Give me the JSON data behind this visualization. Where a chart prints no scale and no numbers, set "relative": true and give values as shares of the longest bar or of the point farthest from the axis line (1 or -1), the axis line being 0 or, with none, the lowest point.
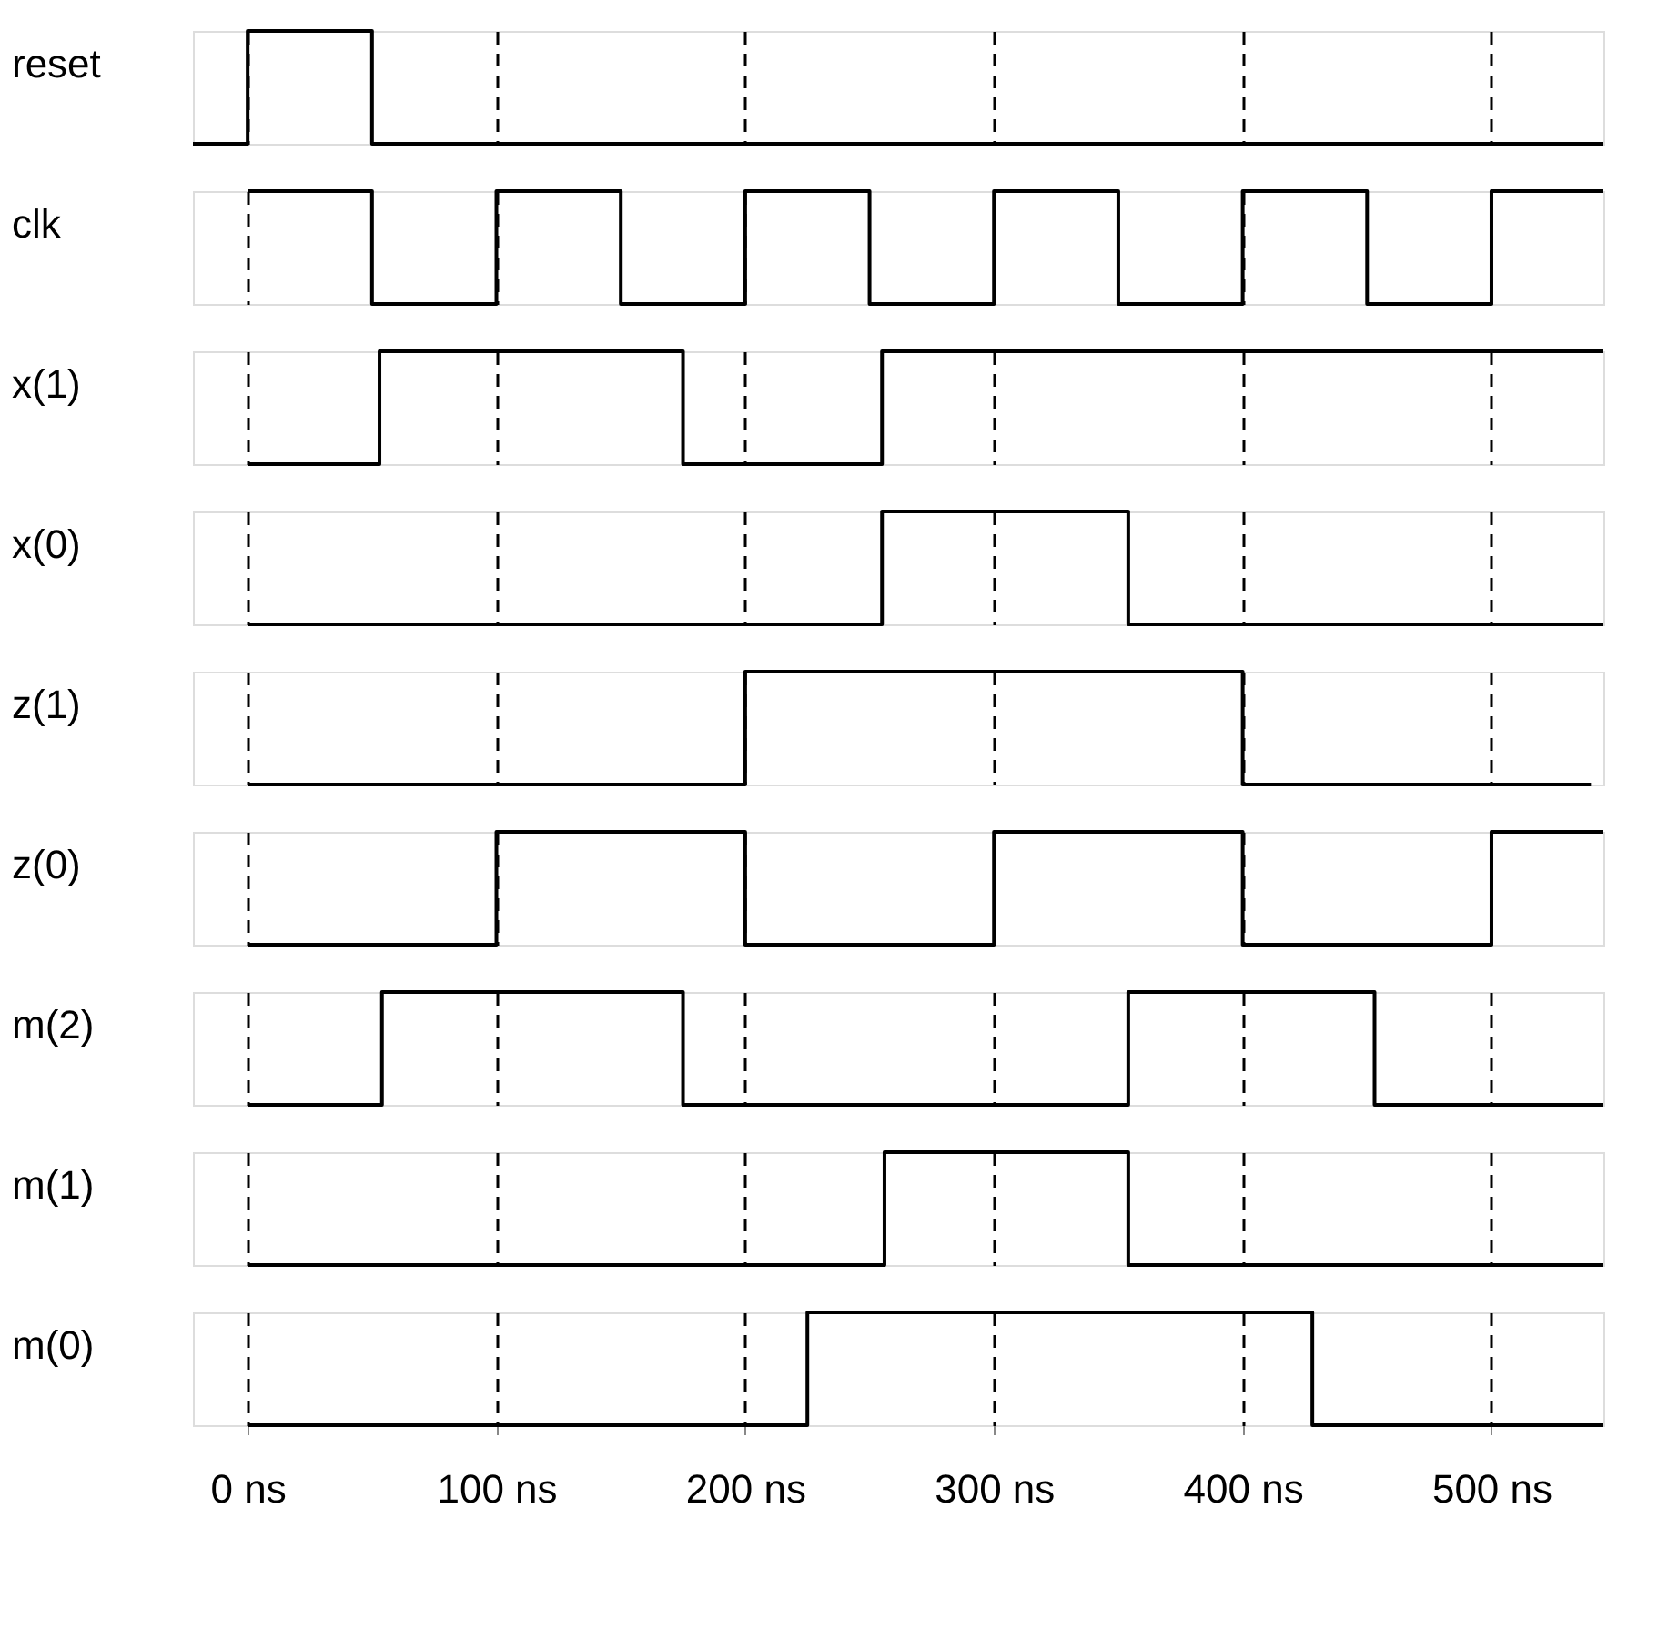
{
  "chart_data": [
    {
      "type": "step",
      "ylabel": "reset",
      "relative": true,
      "xlim": [
        -22,
        545
      ],
      "xticks": [
        {
          "value": 0,
          "label": null
        },
        {
          "value": 100,
          "label": null
        },
        {
          "value": 200,
          "label": null
        },
        {
          "value": 300,
          "label": null
        },
        {
          "value": 400,
          "label": null
        },
        {
          "value": 500,
          "label": null
        }
      ],
      "grid": "x",
      "line_style": "solid",
      "tick_labels": false,
      "series": [
        {
          "color": "#000000",
          "x": [
            -22,
            0,
            50,
            545
          ],
          "values": [
            0,
            1,
            0,
            0
          ]
        }
      ]
    },
    {
      "type": "step",
      "ylabel": "clk",
      "relative": true,
      "xlim": [
        -22,
        545
      ],
      "xticks": [
        {
          "value": 0,
          "label": null
        },
        {
          "value": 100,
          "label": null
        },
        {
          "value": 200,
          "label": null
        },
        {
          "value": 300,
          "label": null
        },
        {
          "value": 400,
          "label": null
        },
        {
          "value": 500,
          "label": null
        }
      ],
      "grid": "x",
      "line_style": "solid",
      "tick_labels": false,
      "series": [
        {
          "color": "#000000",
          "x": [
            0,
            50,
            100,
            150,
            200,
            250,
            300,
            350,
            400,
            450,
            500,
            545
          ],
          "values": [
            1,
            0,
            1,
            0,
            1,
            0,
            1,
            0,
            1,
            0,
            1,
            1
          ]
        }
      ]
    },
    {
      "type": "step",
      "ylabel": "x(1)",
      "relative": true,
      "xlim": [
        -22,
        545
      ],
      "xticks": [
        {
          "value": 0,
          "label": null
        },
        {
          "value": 100,
          "label": null
        },
        {
          "value": 200,
          "label": null
        },
        {
          "value": 300,
          "label": null
        },
        {
          "value": 400,
          "label": null
        },
        {
          "value": 500,
          "label": null
        }
      ],
      "grid": "x",
      "line_style": "solid",
      "tick_labels": false,
      "series": [
        {
          "color": "#000000",
          "x": [
            0,
            53,
            175,
            255,
            545
          ],
          "values": [
            0,
            1,
            0,
            1,
            1
          ]
        }
      ]
    },
    {
      "type": "step",
      "ylabel": "x(0)",
      "relative": true,
      "xlim": [
        -22,
        545
      ],
      "xticks": [
        {
          "value": 0,
          "label": null
        },
        {
          "value": 100,
          "label": null
        },
        {
          "value": 200,
          "label": null
        },
        {
          "value": 300,
          "label": null
        },
        {
          "value": 400,
          "label": null
        },
        {
          "value": 500,
          "label": null
        }
      ],
      "grid": "x",
      "line_style": "solid",
      "tick_labels": false,
      "series": [
        {
          "color": "#000000",
          "x": [
            0,
            255,
            354,
            545
          ],
          "values": [
            0,
            1,
            0,
            0
          ]
        }
      ]
    },
    {
      "type": "step",
      "ylabel": "z(1)",
      "relative": true,
      "xlim": [
        -22,
        545
      ],
      "xticks": [
        {
          "value": 0,
          "label": null
        },
        {
          "value": 100,
          "label": null
        },
        {
          "value": 200,
          "label": null
        },
        {
          "value": 300,
          "label": null
        },
        {
          "value": 400,
          "label": null
        },
        {
          "value": 500,
          "label": null
        }
      ],
      "grid": "x",
      "line_style": "solid",
      "tick_labels": false,
      "series": [
        {
          "color": "#000000",
          "x": [
            0,
            200,
            400,
            540
          ],
          "values": [
            0,
            1,
            0,
            0
          ]
        }
      ]
    },
    {
      "type": "step",
      "ylabel": "z(0)",
      "relative": true,
      "xlim": [
        -22,
        545
      ],
      "xticks": [
        {
          "value": 0,
          "label": null
        },
        {
          "value": 100,
          "label": null
        },
        {
          "value": 200,
          "label": null
        },
        {
          "value": 300,
          "label": null
        },
        {
          "value": 400,
          "label": null
        },
        {
          "value": 500,
          "label": null
        }
      ],
      "grid": "x",
      "line_style": "solid",
      "tick_labels": false,
      "series": [
        {
          "color": "#000000",
          "x": [
            0,
            100,
            200,
            300,
            400,
            500,
            545
          ],
          "values": [
            0,
            1,
            0,
            1,
            0,
            1,
            1
          ]
        }
      ]
    },
    {
      "type": "step",
      "ylabel": "m(2)",
      "relative": true,
      "xlim": [
        -22,
        545
      ],
      "xticks": [
        {
          "value": 0,
          "label": null
        },
        {
          "value": 100,
          "label": null
        },
        {
          "value": 200,
          "label": null
        },
        {
          "value": 300,
          "label": null
        },
        {
          "value": 400,
          "label": null
        },
        {
          "value": 500,
          "label": null
        }
      ],
      "grid": "x",
      "line_style": "solid",
      "tick_labels": false,
      "series": [
        {
          "color": "#000000",
          "x": [
            0,
            54,
            175,
            354,
            453,
            545
          ],
          "values": [
            0,
            1,
            0,
            1,
            0,
            0
          ]
        }
      ]
    },
    {
      "type": "step",
      "ylabel": "m(1)",
      "relative": true,
      "xlim": [
        -22,
        545
      ],
      "xticks": [
        {
          "value": 0,
          "label": null
        },
        {
          "value": 100,
          "label": null
        },
        {
          "value": 200,
          "label": null
        },
        {
          "value": 300,
          "label": null
        },
        {
          "value": 400,
          "label": null
        },
        {
          "value": 500,
          "label": null
        }
      ],
      "grid": "x",
      "line_style": "solid",
      "tick_labels": false,
      "series": [
        {
          "color": "#000000",
          "x": [
            0,
            256,
            354,
            545
          ],
          "values": [
            0,
            1,
            0,
            0
          ]
        }
      ]
    },
    {
      "type": "step",
      "ylabel": "m(0)",
      "relative": true,
      "xlim": [
        -22,
        545
      ],
      "xticks": [
        {
          "value": 0,
          "label": "0 ns"
        },
        {
          "value": 100,
          "label": "100 ns"
        },
        {
          "value": 200,
          "label": "200 ns"
        },
        {
          "value": 300,
          "label": "300 ns"
        },
        {
          "value": 400,
          "label": "400 ns"
        },
        {
          "value": 500,
          "label": "500 ns"
        }
      ],
      "grid": "x",
      "line_style": "solid",
      "tick_labels": "x",
      "series": [
        {
          "color": "#000000",
          "x": [
            0,
            225,
            428,
            545
          ],
          "values": [
            0,
            1,
            0,
            0
          ]
        }
      ]
    }
  ]
}
